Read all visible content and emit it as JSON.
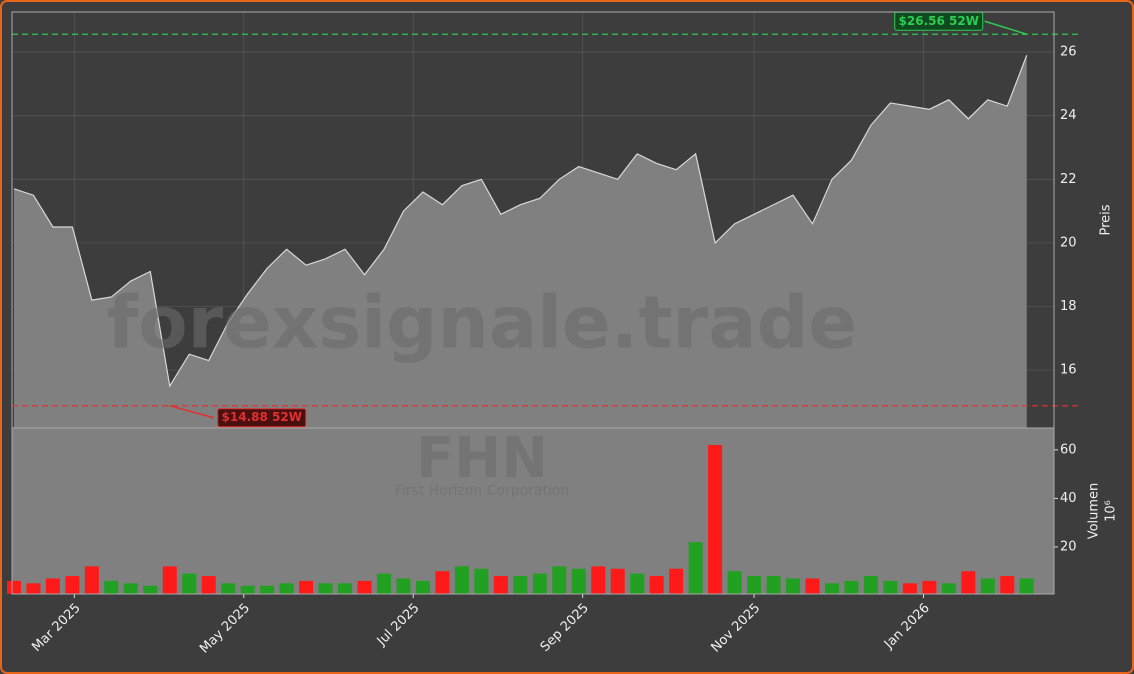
{
  "chart_data": [
    {
      "type": "area",
      "ylabel": "Preis",
      "watermark": "forexsignale.trade",
      "xlim": [
        -0.1,
        53.4
      ],
      "values": [
        21.7,
        21.5,
        20.5,
        20.5,
        18.2,
        18.3,
        18.8,
        19.1,
        15.5,
        16.5,
        16.3,
        17.5,
        18.4,
        19.2,
        19.8,
        19.3,
        19.5,
        19.8,
        19.0,
        19.8,
        21.0,
        21.6,
        21.2,
        21.8,
        22.0,
        20.9,
        21.2,
        21.4,
        22.0,
        22.4,
        22.2,
        22.0,
        22.8,
        22.5,
        22.3,
        22.8,
        20.0,
        20.6,
        20.9,
        21.2,
        21.5,
        20.6,
        22.0,
        22.6,
        23.7,
        24.4,
        24.3,
        24.2,
        24.5,
        23.9,
        24.5,
        24.3,
        25.9
      ],
      "ylim": [
        14.18,
        27.26
      ],
      "yticks": [
        16.0,
        18.0,
        20.0,
        22.0,
        24.0,
        26.0
      ],
      "grid": true,
      "high": {
        "value": 26.56,
        "label": "$26.56 52W",
        "index": 52,
        "color": "#2ecc52"
      },
      "low": {
        "value": 14.88,
        "label": "$14.88 52W",
        "index": 8,
        "color": "#e03030"
      }
    },
    {
      "type": "bar",
      "ylabel": "Volumen",
      "unit": "10⁶",
      "watermark": "FHN",
      "subtitle": "First Horizon Corporation",
      "xlim": [
        -0.1,
        53.4
      ],
      "values": [
        6,
        5,
        7,
        8,
        12,
        6,
        5,
        4,
        12,
        9,
        8,
        5,
        4,
        4,
        5,
        6,
        5,
        5,
        6,
        9,
        7,
        6,
        10,
        12,
        11,
        8,
        8,
        9,
        12,
        11,
        12,
        11,
        9,
        8,
        11,
        22,
        62,
        10,
        8,
        8,
        7,
        7,
        5,
        6,
        8,
        6,
        5,
        6,
        5,
        10,
        7,
        8,
        7
      ],
      "colors": [
        "#ff1a1a",
        "#ff1a1a",
        "#ff1a1a",
        "#ff1a1a",
        "#ff1a1a",
        "#22a022",
        "#22a022",
        "#22a022",
        "#ff1a1a",
        "#22a022",
        "#ff1a1a",
        "#22a022",
        "#22a022",
        "#22a022",
        "#22a022",
        "#ff1a1a",
        "#22a022",
        "#22a022",
        "#ff1a1a",
        "#22a022",
        "#22a022",
        "#22a022",
        "#ff1a1a",
        "#22a022",
        "#22a022",
        "#ff1a1a",
        "#22a022",
        "#22a022",
        "#22a022",
        "#22a022",
        "#ff1a1a",
        "#ff1a1a",
        "#22a022",
        "#ff1a1a",
        "#ff1a1a",
        "#22a022",
        "#ff1a1a",
        "#22a022",
        "#22a022",
        "#22a022",
        "#22a022",
        "#ff1a1a",
        "#22a022",
        "#22a022",
        "#22a022",
        "#22a022",
        "#ff1a1a",
        "#ff1a1a",
        "#22a022",
        "#ff1a1a",
        "#22a022",
        "#ff1a1a",
        "#22a022"
      ],
      "ylim": [
        0.6,
        69
      ],
      "yticks": [
        20,
        40,
        60
      ],
      "xticks": [
        {
          "value": 3.1,
          "label": "Mar 2025"
        },
        {
          "value": 11.8,
          "label": "May 2025"
        },
        {
          "value": 20.5,
          "label": "Jul 2025"
        },
        {
          "value": 29.2,
          "label": "Sep 2025"
        },
        {
          "value": 38.0,
          "label": "Nov 2025"
        },
        {
          "value": 46.7,
          "label": "Jan 2026"
        }
      ]
    }
  ]
}
